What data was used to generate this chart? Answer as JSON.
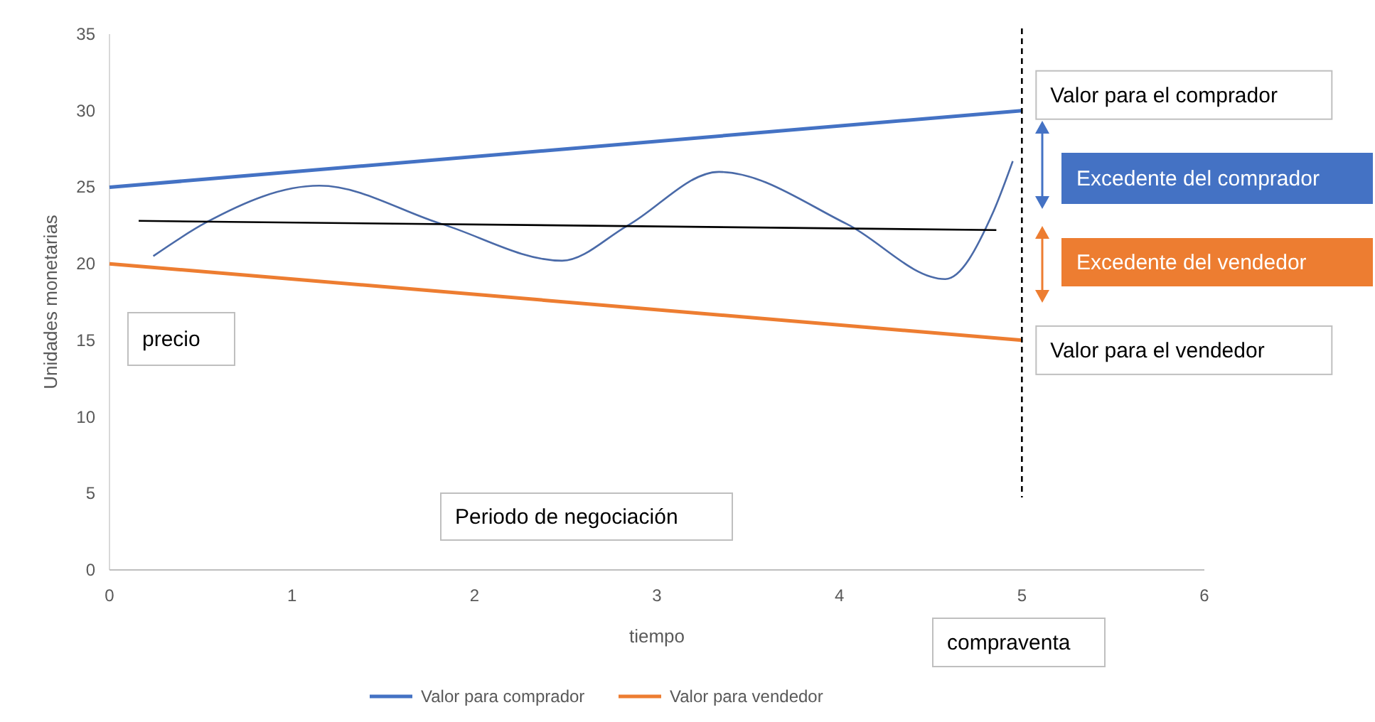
{
  "chart_data": {
    "type": "line",
    "xlabel": "tiempo",
    "ylabel": "Unidades monetarias",
    "xlim": [
      0,
      6
    ],
    "xticks": [
      0,
      1,
      2,
      3,
      4,
      5,
      6
    ],
    "ylim": [
      0,
      35
    ],
    "yticks": [
      0,
      5,
      10,
      15,
      20,
      25,
      30,
      35
    ],
    "grid": false,
    "legend": "bottom",
    "marker": "none",
    "line_style": "solid",
    "series": [
      {
        "name": "Valor para comprador",
        "color": "#4472c4",
        "x": [
          0,
          5
        ],
        "values": [
          25,
          30
        ]
      },
      {
        "name": "Valor para vendedor",
        "color": "#ed7d31",
        "x": [
          0,
          5
        ],
        "values": [
          20,
          15
        ]
      },
      {
        "color": "#4a6aa8",
        "x": [
          0.24,
          0.53,
          1.15,
          1.82,
          2.48,
          2.84,
          3.34,
          4.04,
          4.58,
          4.84,
          4.95
        ],
        "values": [
          20.5,
          22.7,
          25.1,
          22.6,
          20.2,
          22.5,
          26.0,
          22.6,
          19.0,
          23.3,
          26.7
        ]
      },
      {
        "color": "#000000",
        "x": [
          0.16,
          4.86
        ],
        "values": [
          22.8,
          22.2
        ]
      }
    ],
    "ref_lines": [
      {
        "axis": "x",
        "value": 5,
        "color": "#000000",
        "line_style": "dashed"
      }
    ],
    "annotations": [
      {
        "text": "Valor para el comprador",
        "x": 5,
        "y": 30
      },
      "Excedente del comprador",
      "Excedente del vendedor",
      {
        "text": "Valor para el vendedor",
        "x": 5,
        "y": 15
      },
      "precio",
      "Periodo de negociación",
      "compraventa"
    ]
  }
}
